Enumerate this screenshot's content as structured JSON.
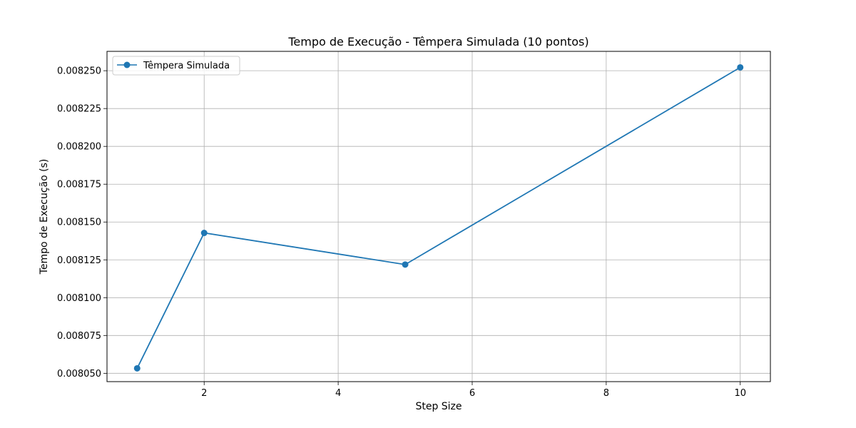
{
  "chart_data": {
    "type": "line",
    "title": "Tempo de Execução - Têmpera Simulada (10 pontos)",
    "xlabel": "Step Size",
    "ylabel": "Tempo de Execução (s)",
    "xlim": [
      0.55,
      10.45
    ],
    "ylim": [
      0.0080445,
      0.0082628
    ],
    "xticks": [
      2,
      4,
      6,
      8,
      10
    ],
    "xtick_labels": [
      "2",
      "4",
      "6",
      "8",
      "10"
    ],
    "yticks": [
      0.00805,
      0.008075,
      0.0081,
      0.008125,
      0.00815,
      0.008175,
      0.0082,
      0.008225,
      0.00825
    ],
    "ytick_labels": [
      "0.008050",
      "0.008075",
      "0.008100",
      "0.008125",
      "0.008150",
      "0.008175",
      "0.008200",
      "0.008225",
      "0.008250"
    ],
    "grid": true,
    "legend_position": "top-left",
    "series": [
      {
        "name": "Têmpera Simulada",
        "color": "#1f77b4",
        "marker": "circle",
        "x": [
          1,
          2,
          5,
          10
        ],
        "y": [
          0.0080533,
          0.0081428,
          0.0081219,
          0.0082522
        ]
      }
    ]
  }
}
